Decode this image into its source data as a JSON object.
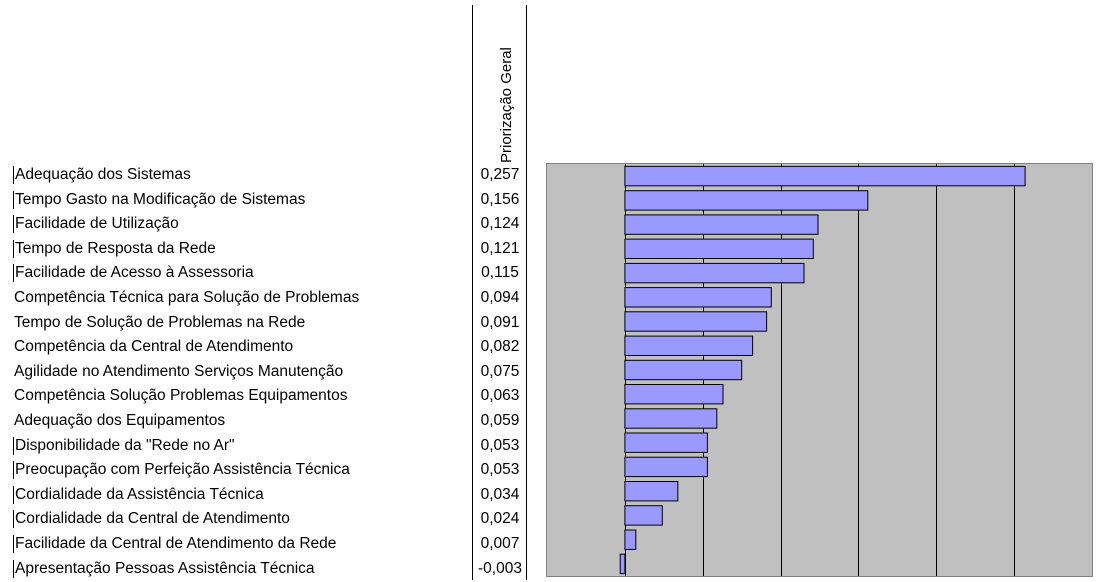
{
  "chart_data": {
    "type": "bar",
    "orientation": "horizontal",
    "value_header": "Priorização Geral",
    "categories": [
      "Adequação dos Sistemas",
      "Tempo Gasto na Modificação de Sistemas",
      "Facilidade de Utilização",
      "Tempo de Resposta da Rede",
      "Facilidade de Acesso à Assessoria",
      "Competência Técnica para Solução de Problemas",
      "Tempo de Solução de Problemas na Rede",
      "Competência da Central de Atendimento",
      "Agilidade no Atendimento Serviços Manutenção",
      "Competência Solução Problemas Equipamentos",
      "Adequação dos Equipamentos",
      "Disponibilidade da \"Rede no Ar\"",
      "Preocupação com Perfeição Assistência Técnica",
      "Cordialidade da Assistência Técnica",
      "Cordialidade da Central de Atendimento",
      "Facilidade da Central de Atendimento da Rede",
      "Apresentação Pessoas Assistência Técnica"
    ],
    "values": [
      0.257,
      0.156,
      0.124,
      0.121,
      0.115,
      0.094,
      0.091,
      0.082,
      0.075,
      0.063,
      0.059,
      0.053,
      0.053,
      0.034,
      0.024,
      0.007,
      -0.003
    ],
    "value_labels": [
      "0,257",
      "0,156",
      "0,124",
      "0,121",
      "0,115",
      "0,094",
      "0,091",
      "0,082",
      "0,075",
      "0,063",
      "0,059",
      "0,053",
      "0,053",
      "0,034",
      "0,024",
      "0,007",
      "-0,003"
    ],
    "xlim": [
      -0.05,
      0.3
    ],
    "grid_step": 0.05,
    "grid": true,
    "legend": "none",
    "colors": {
      "bar_fill": "#9999ff",
      "bar_stroke": "#000000",
      "plot_background": "#c0c0c0",
      "gridline": "#000000"
    }
  }
}
